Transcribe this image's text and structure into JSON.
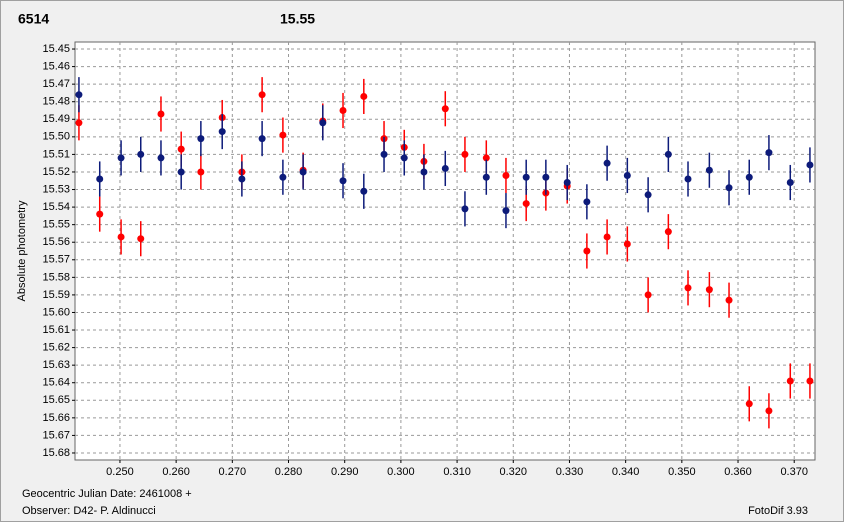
{
  "chart_data": {
    "type": "errorbar",
    "annotations": [
      {
        "text": "6514",
        "color": "#ff0000"
      },
      {
        "text": "15.55",
        "color": "#0d1b7a"
      }
    ],
    "y_label": "Absolute photometry",
    "footer": [
      "Geocentric Julian Date: 2461008 +",
      "Observer: D42- P. Aldinucci",
      "FotoDif 3.93"
    ],
    "x": [
      0.2427,
      0.2464,
      0.2502,
      0.2537,
      0.2573,
      0.2609,
      0.2644,
      0.2682,
      0.2717,
      0.2753,
      0.279,
      0.2826,
      0.2861,
      0.2897,
      0.2934,
      0.297,
      0.3006,
      0.3041,
      0.3079,
      0.3114,
      0.3152,
      0.3187,
      0.3223,
      0.3258,
      0.3296,
      0.3331,
      0.3367,
      0.3403,
      0.344,
      0.3476,
      0.3511,
      0.3549,
      0.3584,
      0.362,
      0.3655,
      0.3693,
      0.3728
    ],
    "series": [
      {
        "color": "#ff0000",
        "values": [
          15.492,
          15.544,
          15.557,
          15.558,
          15.487,
          15.507,
          15.52,
          15.489,
          15.52,
          15.476,
          15.499,
          15.519,
          15.491,
          15.485,
          15.477,
          15.501,
          15.506,
          15.514,
          15.484,
          15.51,
          15.512,
          15.522,
          15.538,
          15.532,
          15.528,
          15.565,
          15.557,
          15.561,
          15.59,
          15.554,
          15.586,
          15.587,
          15.593,
          15.652,
          15.656,
          15.639,
          15.639
        ],
        "errors": [
          0.01,
          0.01,
          0.01,
          0.01,
          0.01,
          0.01,
          0.01,
          0.01,
          0.01,
          0.01,
          0.01,
          0.01,
          0.01,
          0.01,
          0.01,
          0.01,
          0.01,
          0.01,
          0.01,
          0.01,
          0.01,
          0.01,
          0.01,
          0.01,
          0.01,
          0.01,
          0.01,
          0.01,
          0.01,
          0.01,
          0.01,
          0.01,
          0.01,
          0.01,
          0.01,
          0.01,
          0.01
        ]
      },
      {
        "color": "#0d1b7a",
        "values": [
          15.476,
          15.524,
          15.512,
          15.51,
          15.512,
          15.52,
          15.501,
          15.497,
          15.524,
          15.501,
          15.523,
          15.52,
          15.492,
          15.525,
          15.531,
          15.51,
          15.512,
          15.52,
          15.518,
          15.541,
          15.523,
          15.542,
          15.523,
          15.523,
          15.526,
          15.537,
          15.515,
          15.522,
          15.533,
          15.51,
          15.524,
          15.519,
          15.529,
          15.523,
          15.509,
          15.526,
          15.516
        ],
        "errors": [
          0.01,
          0.01,
          0.01,
          0.01,
          0.01,
          0.01,
          0.01,
          0.01,
          0.01,
          0.01,
          0.01,
          0.01,
          0.01,
          0.01,
          0.01,
          0.01,
          0.01,
          0.01,
          0.01,
          0.01,
          0.01,
          0.01,
          0.01,
          0.01,
          0.01,
          0.01,
          0.01,
          0.01,
          0.01,
          0.01,
          0.01,
          0.01,
          0.01,
          0.01,
          0.01,
          0.01,
          0.01
        ]
      }
    ],
    "xlim": [
      0.242,
      0.3737
    ],
    "ylim": [
      15.684,
      15.446
    ],
    "xticks": [
      {
        "value": 0.25,
        "label": "0.250"
      },
      {
        "value": 0.26,
        "label": "0.260"
      },
      {
        "value": 0.27,
        "label": "0.270"
      },
      {
        "value": 0.28,
        "label": "0.280"
      },
      {
        "value": 0.29,
        "label": "0.290"
      },
      {
        "value": 0.3,
        "label": "0.300"
      },
      {
        "value": 0.31,
        "label": "0.310"
      },
      {
        "value": 0.32,
        "label": "0.320"
      },
      {
        "value": 0.33,
        "label": "0.330"
      },
      {
        "value": 0.34,
        "label": "0.340"
      },
      {
        "value": 0.35,
        "label": "0.350"
      },
      {
        "value": 0.36,
        "label": "0.360"
      },
      {
        "value": 0.37,
        "label": "0.370"
      }
    ],
    "yticks": [
      15.45,
      15.46,
      15.47,
      15.48,
      15.49,
      {
        "value": 15.5,
        "label": "15.50"
      },
      15.51,
      15.52,
      15.53,
      15.54,
      15.55,
      15.56,
      15.57,
      15.58,
      15.59,
      {
        "value": 15.6,
        "label": "15.60"
      },
      15.61,
      15.62,
      15.63,
      15.64,
      15.65,
      15.66,
      15.67,
      15.68
    ],
    "grid": true
  }
}
